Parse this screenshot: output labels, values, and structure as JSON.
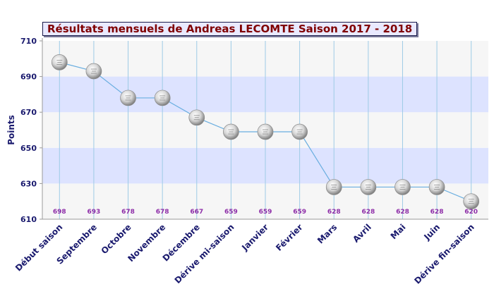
{
  "chart_data": {
    "type": "line",
    "title": "Résultats mensuels de Andreas LECOMTE Saison 2017 - 2018",
    "ylabel": "Points",
    "xlabel": "",
    "ylim": [
      610,
      710
    ],
    "yticks": [
      610,
      630,
      650,
      670,
      690,
      710
    ],
    "categories": [
      "Début saison",
      "Septembre",
      "Octobre",
      "Novembre",
      "Décembre",
      "Dérive mi-saison",
      "Janvier",
      "Février",
      "Mars",
      "Avril",
      "Mai",
      "Juin",
      "Dérive fin-saison"
    ],
    "values": [
      698,
      693,
      678,
      678,
      667,
      659,
      659,
      659,
      628,
      628,
      628,
      628,
      620
    ],
    "value_labels": [
      "698",
      "693",
      "678",
      "678",
      "667",
      "659",
      "659",
      "659",
      "628",
      "628",
      "628",
      "628",
      "620"
    ],
    "grid": true,
    "colors": {
      "title_text": "#800000",
      "title_bg": "#e9e9ff",
      "band_light": "#f6f6f6",
      "band_blue": "#dde3ff",
      "vertical_grid": "#9ecbe6",
      "line": "#6aaee0",
      "axis_label": "#1a1a6e",
      "value_label": "#8e2ea8"
    }
  }
}
